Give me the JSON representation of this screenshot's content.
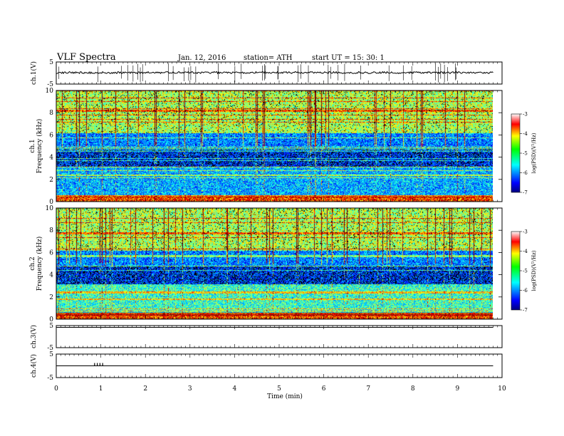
{
  "header": {
    "title": "VLF  Spectra",
    "date": "Jan. 12, 2016",
    "station": "station= ATH",
    "start": "start  UT  =    15: 30: 1"
  },
  "chart_data": [
    {
      "type": "line",
      "panel": "ch1-waveform",
      "ylabel": "ch.1(V)",
      "ylim": [
        -5,
        5
      ],
      "yticks": [
        "5",
        "-5"
      ],
      "xlim": [
        0,
        10
      ],
      "level": 0.2
    },
    {
      "type": "heatmap",
      "panel": "ch1-spectrogram",
      "ylabel": "ch.1\nFrequency  (kHz)",
      "ylim": [
        0,
        10
      ],
      "yticks": [
        "0",
        "2",
        "4",
        "6",
        "8",
        "10"
      ],
      "xlim": [
        0,
        10
      ],
      "data_end_min": 9.8,
      "colorbar": {
        "label": "log(PSD)(V²/Hz)",
        "range": [
          -7,
          -3
        ],
        "ticks": [
          "-3",
          "-4",
          "-5",
          "-6",
          "-7"
        ]
      }
    },
    {
      "type": "heatmap",
      "panel": "ch2-spectrogram",
      "ylabel": "ch.2\nFrequency  (kHz)",
      "ylim": [
        0,
        10
      ],
      "yticks": [
        "0",
        "2",
        "4",
        "6",
        "8",
        "10"
      ],
      "xlim": [
        0,
        10
      ],
      "data_end_min": 9.8,
      "colorbar": {
        "label": "log(PSD)(V²/Hz)",
        "range": [
          -7,
          -3
        ],
        "ticks": [
          "-3",
          "-4",
          "-5",
          "-6",
          "-7"
        ]
      }
    },
    {
      "type": "line",
      "panel": "ch3-waveform",
      "ylabel": "ch.3(V)",
      "ylim": [
        -5,
        5
      ],
      "yticks": [
        "5",
        "-5"
      ],
      "xlim": [
        0,
        10
      ],
      "level": 4.2
    },
    {
      "type": "line",
      "panel": "ch4-waveform",
      "ylabel": "ch.4(V)",
      "ylim": [
        -5,
        5
      ],
      "yticks": [
        "5",
        "-5"
      ],
      "xlim": [
        0,
        10
      ],
      "level": 0
    }
  ],
  "x_axis": {
    "label": "Time  (min)",
    "ticks": [
      "0",
      "1",
      "2",
      "3",
      "4",
      "5",
      "6",
      "7",
      "8",
      "9",
      "10"
    ]
  }
}
